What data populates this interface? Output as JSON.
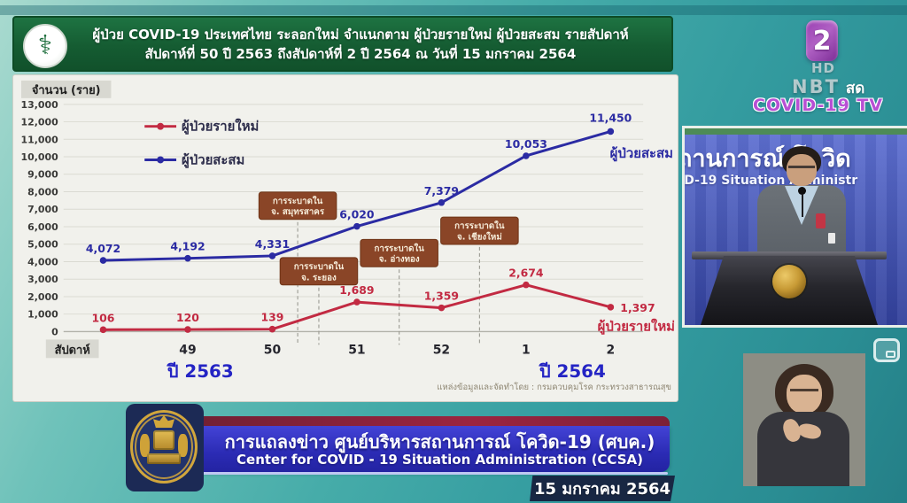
{
  "header": {
    "title_line1": "ผู้ป่วย COVID-19 ประเทศไทย ระลอกใหม่ จำแนกตาม ผู้ป่วยรายใหม่ ผู้ป่วยสะสม รายสัปดาห์",
    "title_line2": "สัปดาห์ที่ 50 ปี 2563 ถึงสัปดาห์ที่ 2 ปี 2564 ณ วันที่ 15 มกราคม 2564",
    "logo_symbol": "⚕"
  },
  "chart_data": {
    "type": "line",
    "ylabel": "จำนวน (ราย)",
    "xlabel": "สัปดาห์",
    "ylim": [
      0,
      13000
    ],
    "ytick_step": 1000,
    "grid": true,
    "legend_position": "top-center",
    "categories": [
      "",
      "49",
      "50",
      "51",
      "52",
      "1",
      "2"
    ],
    "series": [
      {
        "name": "ผู้ป่วยรายใหม่",
        "color": "#c22a42",
        "values": [
          106,
          120,
          139,
          1689,
          1359,
          2674,
          1397
        ]
      },
      {
        "name": "ผู้ป่วยสะสม",
        "color": "#2b2ba3",
        "values": [
          4072,
          4192,
          4331,
          6020,
          7379,
          10053,
          11450
        ]
      }
    ],
    "year_labels": [
      {
        "text": "ปี 2563",
        "week_x": 1.15
      },
      {
        "text": "ปี 2564",
        "week_x": 5.55
      }
    ],
    "annotations": [
      {
        "line1": "การระบาดใน",
        "line2": "จ. สมุทรสาคร",
        "week_x": 2.3,
        "value_y": 7200
      },
      {
        "line1": "การระบาดใน",
        "line2": "จ. ระยอง",
        "week_x": 2.55,
        "value_y": 3450
      },
      {
        "line1": "การระบาดใน",
        "line2": "จ. อ่างทอง",
        "week_x": 3.5,
        "value_y": 4490
      },
      {
        "line1": "การระบาดใน",
        "line2": "จ. เชียงใหม่",
        "week_x": 4.45,
        "value_y": 5770
      }
    ],
    "source": "แหล่งข้อมูลและจัดทำโดย : กรมควบคุมโรค กระทรวงสาธารณสุข"
  },
  "tv": {
    "channel_number": "2",
    "hd_label": "HD",
    "network": "NBT",
    "live_label": "สด",
    "program_label": "COVID-19 TV"
  },
  "speaker_video": {
    "backdrop_line1": "ถานการณ์ โควิด",
    "backdrop_line2": "ID-19 Situation Administr"
  },
  "lower_third": {
    "thai_title": "การแถลงข่าว ศูนย์บริหารสถานการณ์ โควิด-19 (ศบค.)",
    "english_title": "Center for COVID - 19 Situation Administration (CCSA)",
    "date": "15 มกราคม 2564"
  },
  "colors": {
    "new_cases": "#c22a42",
    "cumulative": "#2b2ba3",
    "annotation_box": "#8a4527",
    "header_green": "#17663a",
    "banner_blue": "#2e2ec0",
    "banner_stripe": "#8d2338",
    "date_navy": "#182743",
    "program_purple": "#b84fd4"
  }
}
